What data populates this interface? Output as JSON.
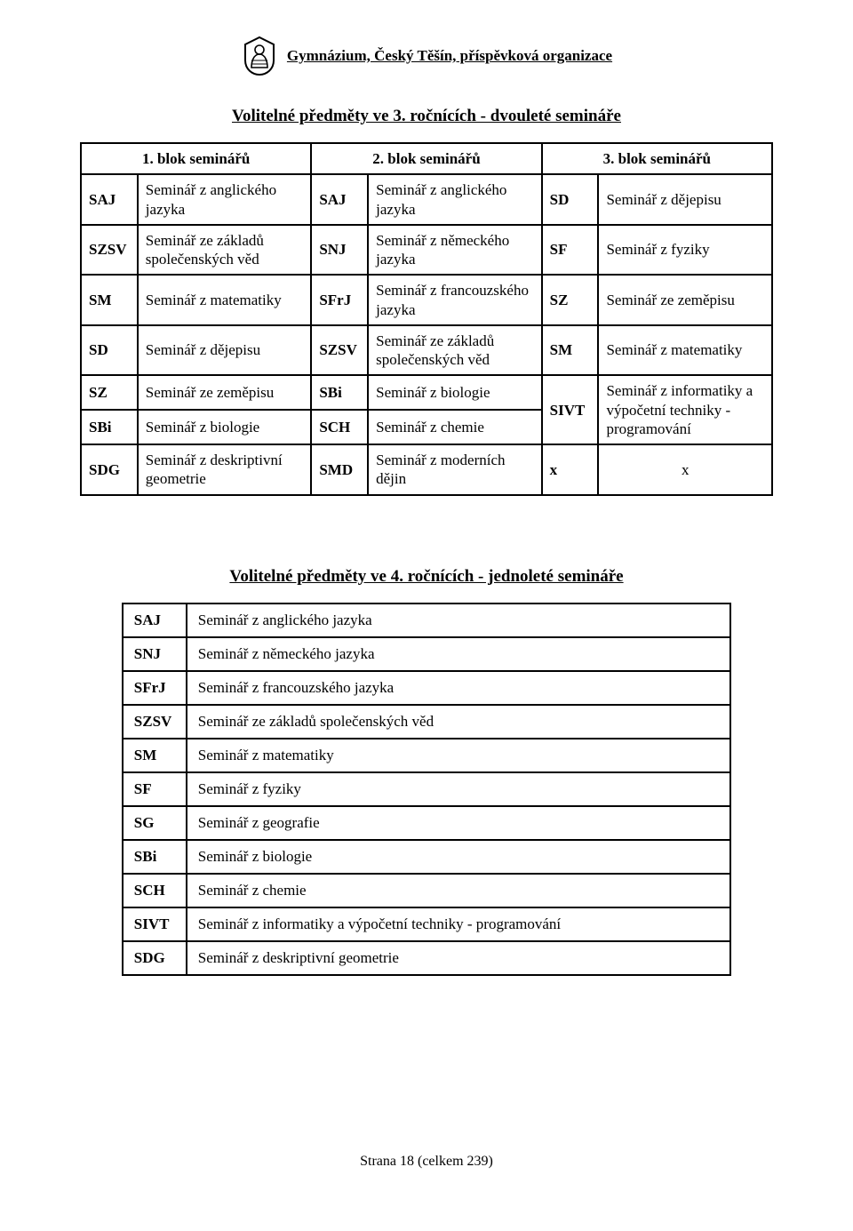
{
  "header": {
    "institution": "Gymnázium, Český Těšín, příspěvková organizace"
  },
  "title1": "Volitelné předměty ve 3. ročnících - dvouleté semináře",
  "table1": {
    "col1_hdr": "1. blok seminářů",
    "col2_hdr": "2. blok seminářů",
    "col3_hdr": "3. blok seminářů",
    "r1": {
      "a_code": "SAJ",
      "a_name": "Seminář z anglického jazyka",
      "b_code": "SAJ",
      "b_name": "Seminář z anglického jazyka",
      "c_code": "SD",
      "c_name": "Seminář z dějepisu"
    },
    "r2": {
      "a_code": "SZSV",
      "a_name": "Seminář ze základů společenských věd",
      "b_code": "SNJ",
      "b_name": "Seminář z německého jazyka",
      "c_code": "SF",
      "c_name": "Seminář z fyziky"
    },
    "r3": {
      "a_code": "SM",
      "a_name": "Seminář z matematiky",
      "b_code": "SFrJ",
      "b_name": "Seminář z francouzského jazyka",
      "c_code": "SZ",
      "c_name": "Seminář ze zeměpisu"
    },
    "r4": {
      "a_code": "SD",
      "a_name": "Seminář z dějepisu",
      "b_code": "SZSV",
      "b_name": "Seminář ze základů společenských věd",
      "c_code": "SM",
      "c_name": "Seminář z matematiky"
    },
    "r5": {
      "a_code": "SZ",
      "a_name": "Seminář ze zeměpisu",
      "b_code": "SBi",
      "b_name": "Seminář z biologie"
    },
    "r6": {
      "a_code": "SBi",
      "a_name": "Seminář z biologie",
      "b_code": "SCH",
      "b_name": "Seminář z chemie"
    },
    "r56c": {
      "code": "SIVT",
      "name": "Seminář z informatiky a výpočetní techniky - programování"
    },
    "r7": {
      "a_code": "SDG",
      "a_name": "Seminář z deskriptivní geometrie",
      "b_code": "SMD",
      "b_name": "Seminář z moderních dějin",
      "c_code": "x",
      "c_name": "x"
    }
  },
  "title2": "Volitelné předměty ve 4. ročnících - jednoleté semináře",
  "table2": {
    "rows": [
      {
        "code": "SAJ",
        "name": "Seminář z anglického jazyka"
      },
      {
        "code": "SNJ",
        "name": "Seminář z německého jazyka"
      },
      {
        "code": "SFrJ",
        "name": "Seminář z francouzského jazyka"
      },
      {
        "code": "SZSV",
        "name": "Seminář ze základů společenských věd"
      },
      {
        "code": "SM",
        "name": "Seminář z matematiky"
      },
      {
        "code": "SF",
        "name": "Seminář z fyziky"
      },
      {
        "code": "SG",
        "name": "Seminář z geografie"
      },
      {
        "code": "SBi",
        "name": "Seminář z biologie"
      },
      {
        "code": "SCH",
        "name": "Seminář z chemie"
      },
      {
        "code": "SIVT",
        "name": "Seminář z informatiky a výpočetní techniky - programování"
      },
      {
        "code": "SDG",
        "name": "Seminář z deskriptivní geometrie"
      }
    ]
  },
  "footer": "Strana 18 (celkem 239)"
}
